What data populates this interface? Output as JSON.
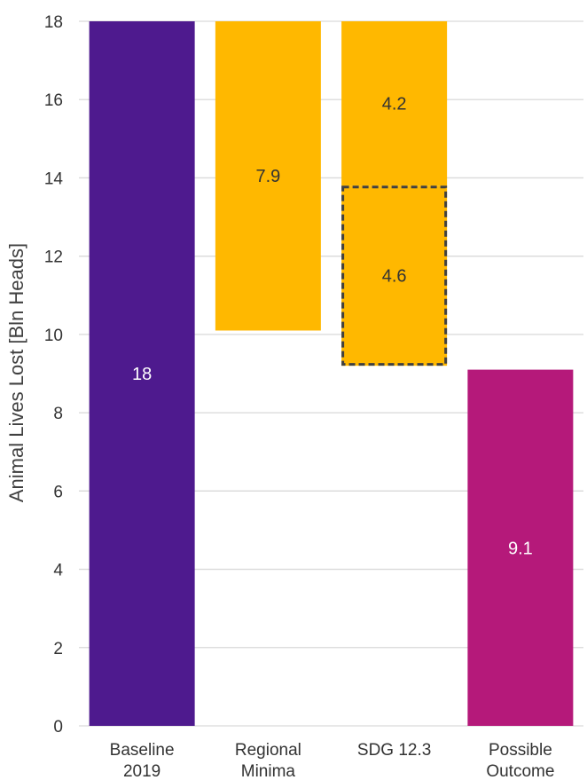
{
  "chart_data": {
    "type": "bar",
    "title": "",
    "xlabel": "",
    "ylabel": "Animal Lives Lost [Bln Heads]",
    "ylim": [
      0,
      18
    ],
    "yticks": [
      0,
      2,
      4,
      6,
      8,
      10,
      12,
      14,
      16,
      18
    ],
    "grid": true,
    "legend": "none",
    "categories": [
      [
        "Baseline",
        "2019"
      ],
      [
        "Regional",
        "Minima"
      ],
      [
        "SDG 12.3",
        ""
      ],
      [
        "Possible",
        "Outcome"
      ]
    ],
    "bars": [
      {
        "category": 0,
        "base": 0,
        "value": 18,
        "label": "18",
        "color": "#4E1A8E",
        "label_color": "#ffffff",
        "dashed": false
      },
      {
        "category": 1,
        "base": 10.1,
        "value": 7.9,
        "label": "7.9",
        "color": "#FFB800",
        "label_color": "#333333",
        "dashed": false
      },
      {
        "category": 2,
        "base": 13.8,
        "value": 4.2,
        "label": "4.2",
        "color": "#FFB800",
        "label_color": "#333333",
        "dashed": false
      },
      {
        "category": 2,
        "base": 9.2,
        "value": 4.6,
        "label": "4.6",
        "color": "#FFB800",
        "label_color": "#333333",
        "dashed": true
      },
      {
        "category": 3,
        "base": 0,
        "value": 9.1,
        "label": "9.1",
        "color": "#B5197A",
        "label_color": "#ffffff",
        "dashed": false
      }
    ],
    "colors": {
      "grid": "#d9d9d9",
      "dashed_border": "#404040"
    }
  }
}
